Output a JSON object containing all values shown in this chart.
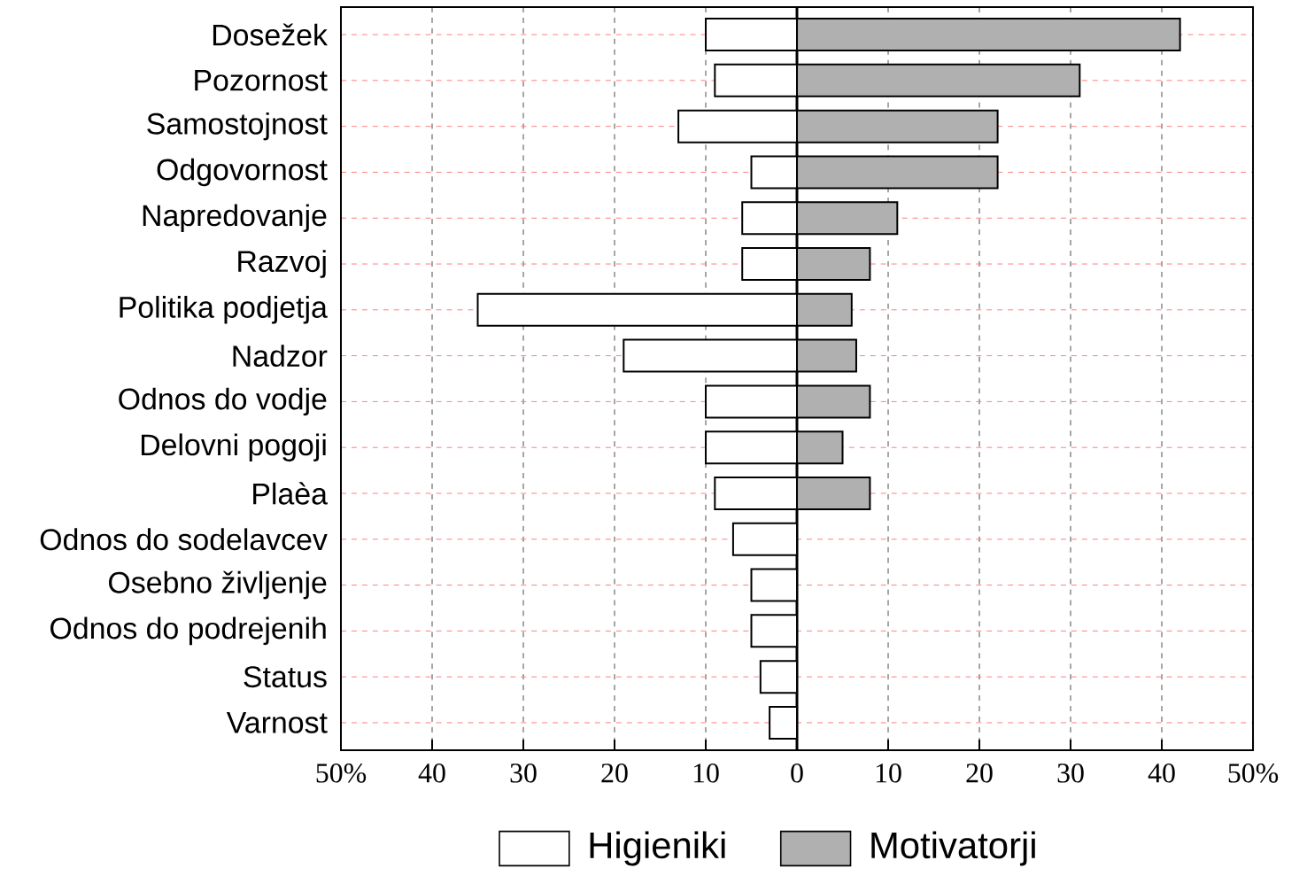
{
  "chart_data": {
    "type": "bar",
    "orientation": "horizontal",
    "categories": [
      "Dosežek",
      "Pozornost",
      "Samostojnost",
      "Odgovornost",
      "Napredovanje",
      "Razvoj",
      "Politika podjetja",
      "Nadzor",
      "Odnos do vodje",
      "Delovni pogoji",
      "Plaèa",
      "Odnos do sodelavcev",
      "Osebno življenje",
      "Odnos do podrejenih",
      "Status",
      "Varnost"
    ],
    "series": [
      {
        "name": "Higieniki",
        "color": "#ffffff",
        "values": [
          -10,
          -9,
          -13,
          -5,
          -6,
          -6,
          -35,
          -19,
          -10,
          -10,
          -9,
          -7,
          -5,
          -5,
          -4,
          -3
        ]
      },
      {
        "name": "Motivatorji",
        "color": "#b0b0b0",
        "values": [
          42,
          31,
          22,
          22,
          11,
          8,
          6,
          6.5,
          8,
          5,
          8,
          null,
          null,
          null,
          null,
          null
        ]
      }
    ],
    "xlim": [
      -50,
      50
    ],
    "xticks": [
      {
        "value": -50,
        "label": "50%"
      },
      {
        "value": -40,
        "label": "40"
      },
      {
        "value": -30,
        "label": "30"
      },
      {
        "value": -20,
        "label": "20"
      },
      {
        "value": -10,
        "label": "10"
      },
      0,
      10,
      20,
      30,
      40,
      {
        "value": 50,
        "label": "50%"
      }
    ],
    "stacked": true,
    "grid": true,
    "legend": "bottom",
    "ref_lines": [
      {
        "axis": "x",
        "value": 0,
        "line_style": "solid"
      }
    ]
  }
}
